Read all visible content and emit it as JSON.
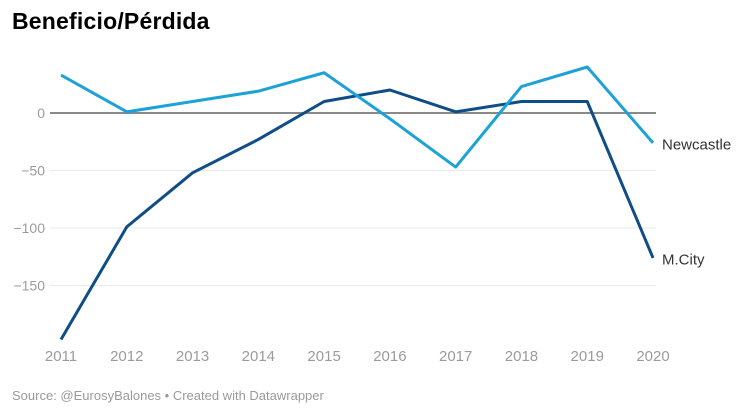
{
  "header": {
    "title": "Beneficio/Pérdida"
  },
  "footer": {
    "text": "Source: @EurosyBalones • Created with Datawrapper"
  },
  "chart_data": {
    "type": "line",
    "title": "Beneficio/Pérdida",
    "categories": [
      "2011",
      "2012",
      "2013",
      "2014",
      "2015",
      "2016",
      "2017",
      "2018",
      "2019",
      "2020"
    ],
    "series": [
      {
        "name": "Newcastle",
        "color": "#1da2d8",
        "values": [
          33,
          1,
          10,
          19,
          35,
          -5,
          -47,
          23,
          40,
          -26
        ]
      },
      {
        "name": "M.City",
        "color": "#0e4d85",
        "values": [
          -197,
          -99,
          -52,
          -23,
          10,
          20,
          1,
          10,
          10,
          -126
        ]
      }
    ],
    "xlabel": "",
    "ylabel": "",
    "ylim": [
      -210,
      45
    ],
    "yticks": [
      {
        "value": 0,
        "label": "0"
      },
      {
        "value": -50,
        "label": "−50"
      },
      {
        "value": -100,
        "label": "−100"
      },
      {
        "value": -150,
        "label": "−150"
      }
    ],
    "grid": true,
    "zero_line_emphasized": true,
    "legend_position": "direct-labels-at-line-end"
  },
  "colors": {
    "grid": "#e9e9e9",
    "zero_line": "#8a8a8a",
    "tick_label": "#9b9b9b",
    "series_label": "#333333",
    "title": "#000000",
    "footer": "#9a9a9a",
    "background": "#ffffff"
  }
}
